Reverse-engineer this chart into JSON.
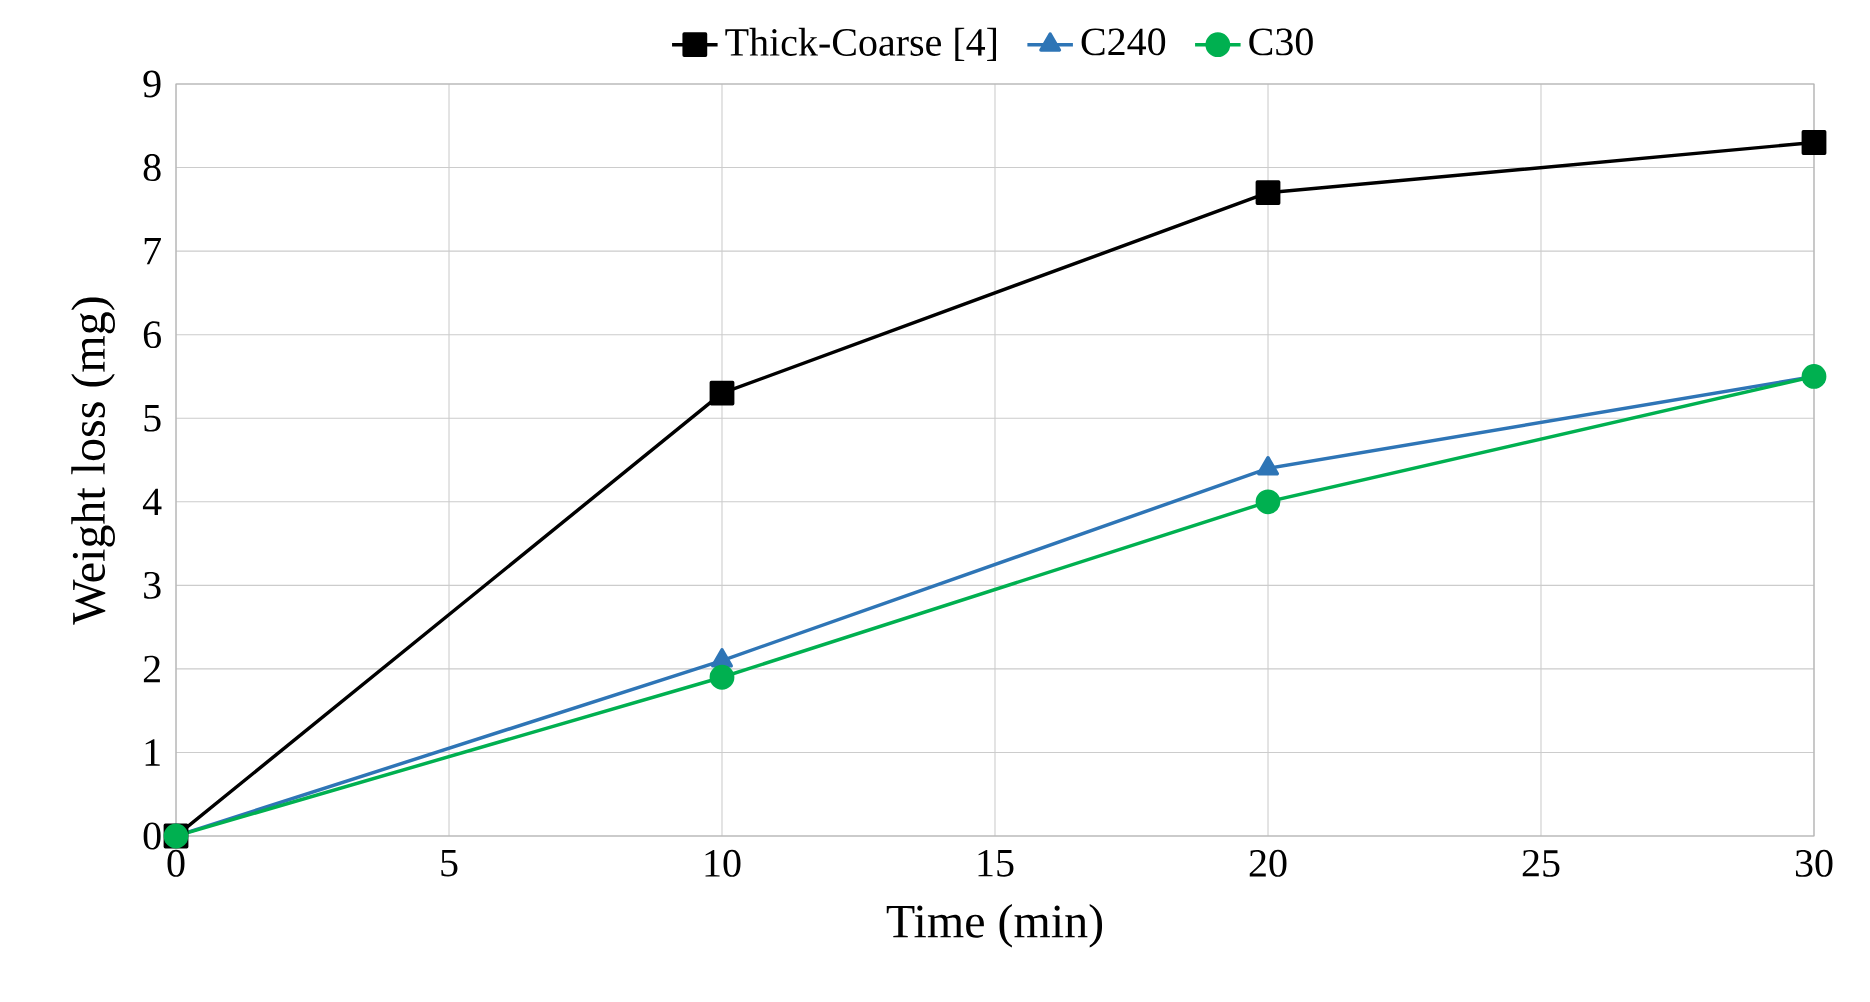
{
  "chart_data": {
    "type": "line",
    "xlabel": "Time (min)",
    "ylabel": "Weight loss (mg)",
    "x": [
      0,
      10,
      20,
      30
    ],
    "series": [
      {
        "name": "Thick-Coarse [4]",
        "color": "#000000",
        "marker": "square",
        "values": [
          0,
          5.3,
          7.7,
          8.3
        ]
      },
      {
        "name": "C240",
        "color": "#2e75b6",
        "marker": "triangle",
        "values": [
          0,
          2.1,
          4.4,
          5.5
        ]
      },
      {
        "name": "C30",
        "color": "#00b050",
        "marker": "circle",
        "values": [
          0,
          1.9,
          4.0,
          5.5
        ]
      }
    ],
    "xlim": [
      0,
      30
    ],
    "xticks": [
      0,
      5,
      10,
      15,
      20,
      25,
      30
    ],
    "ylim": [
      0,
      9
    ],
    "yticks": [
      0,
      1,
      2,
      3,
      4,
      5,
      6,
      7,
      8,
      9
    ],
    "grid": true,
    "legend": "top",
    "line_style": "solid"
  }
}
